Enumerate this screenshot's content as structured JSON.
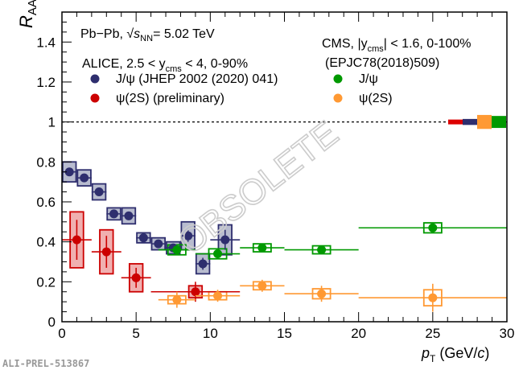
{
  "chart_data": {
    "type": "scatter",
    "xlabel": "p_T (GeV/c)",
    "xlabel_main": "p",
    "xlabel_sub": "T",
    "xlabel_unit": " (GeV/",
    "xlabel_c": "c",
    "xlabel_close": ")",
    "ylabel_main": "R",
    "ylabel_sub": "AA",
    "xlim": [
      0,
      30
    ],
    "ylim": [
      0,
      1.55
    ],
    "xticks": [
      "0",
      "5",
      "10",
      "15",
      "20",
      "25",
      "30"
    ],
    "yticks": [
      "0",
      "0.2",
      "0.4",
      "0.6",
      "0.8",
      "1",
      "1.2",
      "1.4"
    ],
    "reference_line": 1,
    "annotations": {
      "system": "Pb−Pb,",
      "energy_sqrt": "s",
      "energy_sub": "NN",
      "energy_val": "= 5.02 TeV",
      "alice_label": "ALICE, 2.5 < y",
      "alice_sub": "cms",
      "alice_rest": " < 4, 0-90%",
      "cms_label": "CMS, |y",
      "cms_sub": "cms",
      "cms_rest": "| < 1.6, 0-100%",
      "cms_ref": "(EPJC78(2018)509)",
      "watermark": "OBSOLETE",
      "preliminary_id": "ALI-PREL-513867"
    },
    "series": [
      {
        "name": "J/ψ (JHEP 2002 (2020) 041)",
        "color": "#2e2e6e",
        "box_fill": "#b8bccf",
        "marker": "circle",
        "points": [
          {
            "x": 0.5,
            "xlo": 0,
            "xhi": 1,
            "y": 0.75,
            "stat": 0.02,
            "sys": 0.05
          },
          {
            "x": 1.5,
            "xlo": 1,
            "xhi": 2,
            "y": 0.72,
            "stat": 0.015,
            "sys": 0.04
          },
          {
            "x": 2.5,
            "xlo": 2,
            "xhi": 3,
            "y": 0.65,
            "stat": 0.015,
            "sys": 0.04
          },
          {
            "x": 3.5,
            "xlo": 3,
            "xhi": 4,
            "y": 0.54,
            "stat": 0.015,
            "sys": 0.03
          },
          {
            "x": 4.5,
            "xlo": 4,
            "xhi": 5,
            "y": 0.53,
            "stat": 0.015,
            "sys": 0.04
          },
          {
            "x": 5.5,
            "xlo": 5,
            "xhi": 6,
            "y": 0.42,
            "stat": 0.01,
            "sys": 0.025
          },
          {
            "x": 6.5,
            "xlo": 6,
            "xhi": 7,
            "y": 0.39,
            "stat": 0.015,
            "sys": 0.03
          },
          {
            "x": 7.5,
            "xlo": 7,
            "xhi": 8,
            "y": 0.37,
            "stat": 0.02,
            "sys": 0.03
          },
          {
            "x": 8.5,
            "xlo": 8,
            "xhi": 9,
            "y": 0.43,
            "stat": 0.03,
            "sys": 0.07
          },
          {
            "x": 9.5,
            "xlo": 9,
            "xhi": 10,
            "y": 0.29,
            "stat": 0.03,
            "sys": 0.05
          },
          {
            "x": 11,
            "xlo": 10,
            "xhi": 12,
            "y": 0.41,
            "stat": 0.05,
            "sys": 0.075
          }
        ]
      },
      {
        "name": "ψ(2S) (preliminary)",
        "color": "#cc0000",
        "box_fill": "#f0b0b0",
        "marker": "circle",
        "points": [
          {
            "x": 1,
            "xlo": 0,
            "xhi": 2,
            "y": 0.41,
            "stat": 0.1,
            "sys": 0.14
          },
          {
            "x": 3,
            "xlo": 2,
            "xhi": 4,
            "y": 0.35,
            "stat": 0.08,
            "sys": 0.11
          },
          {
            "x": 5,
            "xlo": 4,
            "xhi": 6,
            "y": 0.22,
            "stat": 0.05,
            "sys": 0.07
          },
          {
            "x": 9,
            "xlo": 6,
            "xhi": 12,
            "y": 0.15,
            "stat": 0.05,
            "sys": 0.03
          }
        ]
      },
      {
        "name": "J/ψ",
        "color": "#009900",
        "box_fill": "none",
        "marker": "circle",
        "points": [
          {
            "x": 7.75,
            "xlo": 6.5,
            "xhi": 9,
            "y": 0.36,
            "stat": 0.01,
            "sys": 0.025
          },
          {
            "x": 10.5,
            "xlo": 9,
            "xhi": 12,
            "y": 0.34,
            "stat": 0.01,
            "sys": 0.025
          },
          {
            "x": 13.5,
            "xlo": 12,
            "xhi": 15,
            "y": 0.37,
            "stat": 0.01,
            "sys": 0.02
          },
          {
            "x": 17.5,
            "xlo": 15,
            "xhi": 20,
            "y": 0.36,
            "stat": 0.01,
            "sys": 0.02
          },
          {
            "x": 25,
            "xlo": 20,
            "xhi": 30,
            "y": 0.47,
            "stat": 0.015,
            "sys": 0.025
          }
        ]
      },
      {
        "name": "ψ(2S)",
        "color": "#ff9933",
        "box_fill": "none",
        "marker": "circle",
        "points": [
          {
            "x": 7.75,
            "xlo": 6.5,
            "xhi": 9,
            "y": 0.11,
            "stat": 0.04,
            "sys": 0.02
          },
          {
            "x": 10.5,
            "xlo": 9,
            "xhi": 12,
            "y": 0.13,
            "stat": 0.03,
            "sys": 0.02
          },
          {
            "x": 13.5,
            "xlo": 12,
            "xhi": 15,
            "y": 0.18,
            "stat": 0.03,
            "sys": 0.02
          },
          {
            "x": 17.5,
            "xlo": 15,
            "xhi": 20,
            "y": 0.14,
            "stat": 0.04,
            "sys": 0.025
          },
          {
            "x": 25,
            "xlo": 20,
            "xhi": 30,
            "y": 0.12,
            "stat": 0.07,
            "sys": 0.04
          }
        ]
      }
    ],
    "global_uncertainties": [
      {
        "color": "#dd0000",
        "half": 0.012
      },
      {
        "color": "#2e2e6e",
        "half": 0.015
      },
      {
        "color": "#ff9933",
        "half": 0.035
      },
      {
        "color": "#009900",
        "half": 0.03
      }
    ]
  }
}
